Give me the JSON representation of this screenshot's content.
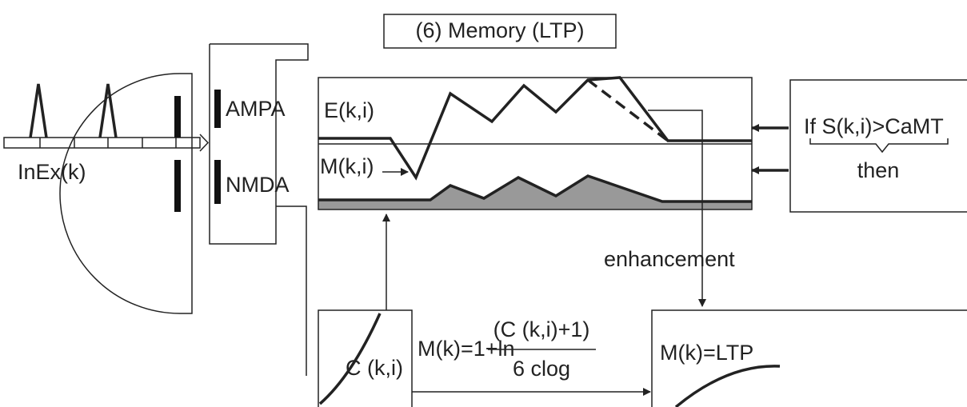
{
  "title": "(6) Memory (LTP)",
  "presynaptic": {
    "label": "InEx(k)"
  },
  "receptors": [
    "AMPA",
    "NMDA"
  ],
  "plot": {
    "upper_label": "E(k,i)",
    "lower_label": "M(k,i)"
  },
  "condition": {
    "text": "If S(k,i)>CaMT",
    "then": "then"
  },
  "enhancement": "enhancement",
  "calcium": {
    "label": "C (k,i)"
  },
  "formula": {
    "lhs": "M(k)=1+ln",
    "numerator": "(C (k,i)+1)",
    "denominator": "6 clog"
  },
  "result": "M(k)=LTP"
}
